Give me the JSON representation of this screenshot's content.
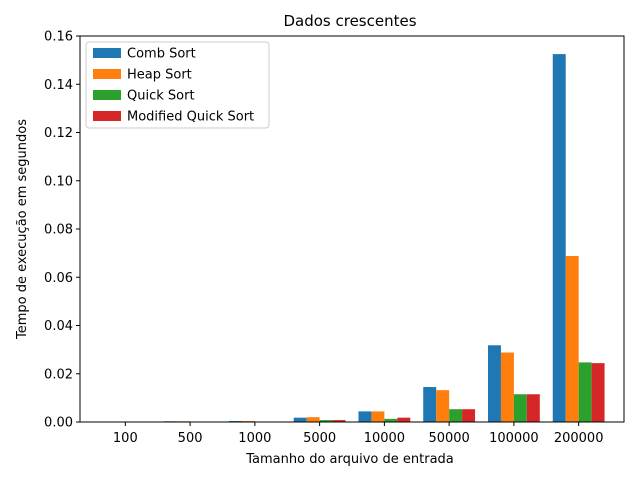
{
  "chart_data": {
    "type": "bar",
    "title": "Dados crescentes",
    "xlabel": "Tamanho do arquivo de entrada",
    "ylabel": "Tempo de execução em segundos",
    "categories": [
      "100",
      "500",
      "1000",
      "5000",
      "10000",
      "50000",
      "100000",
      "200000"
    ],
    "ylim": [
      0,
      0.16
    ],
    "yticks": [
      0.0,
      0.02,
      0.04,
      0.06,
      0.08,
      0.1,
      0.12,
      0.14,
      0.16
    ],
    "ytick_labels": [
      "0.00",
      "0.02",
      "0.04",
      "0.06",
      "0.08",
      "0.10",
      "0.12",
      "0.14",
      "0.16"
    ],
    "legend_position": "top-left",
    "series": [
      {
        "name": "Comb Sort",
        "color": "#1f77b4",
        "values": [
          3e-05,
          0.0003,
          0.0004,
          0.0018,
          0.0044,
          0.0145,
          0.0318,
          0.1525
        ]
      },
      {
        "name": "Heap Sort",
        "color": "#ff7f0e",
        "values": [
          4e-05,
          0.0003,
          0.0004,
          0.002,
          0.0044,
          0.0132,
          0.0288,
          0.0688
        ]
      },
      {
        "name": "Quick Sort",
        "color": "#2ca02c",
        "values": [
          2e-05,
          0.0002,
          0.0002,
          0.0008,
          0.0013,
          0.0053,
          0.0115,
          0.0247
        ]
      },
      {
        "name": "Modified Quick Sort",
        "color": "#d62728",
        "values": [
          2e-05,
          0.0002,
          0.0002,
          0.0008,
          0.0018,
          0.0053,
          0.0115,
          0.0244
        ]
      }
    ]
  }
}
